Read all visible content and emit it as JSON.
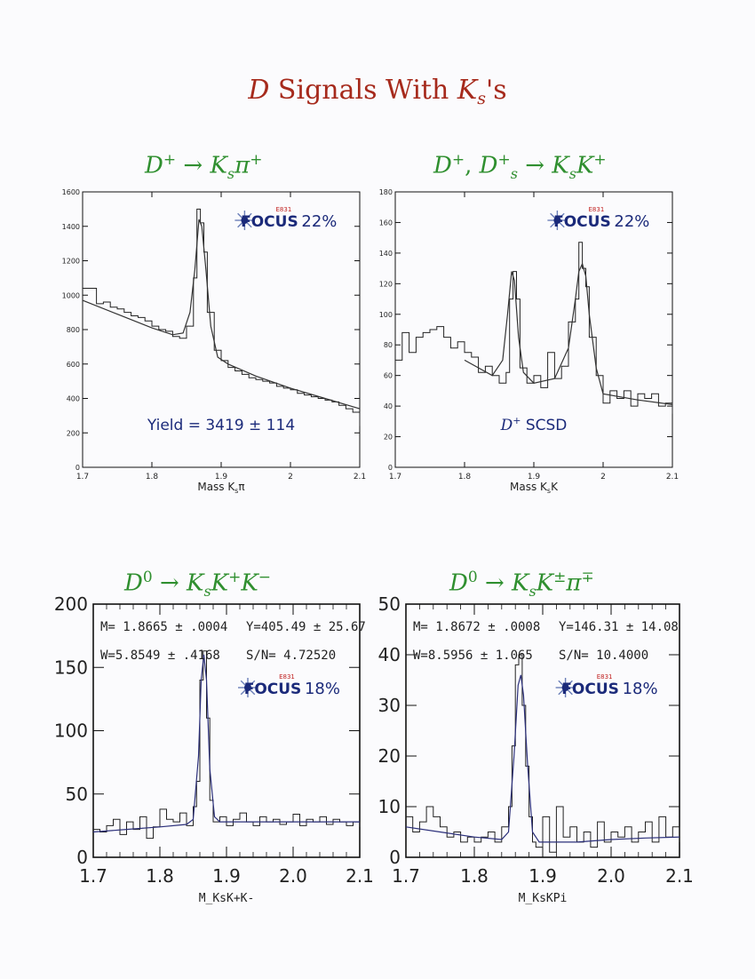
{
  "page": {
    "title_d": "D",
    "title_middle": " Signals With ",
    "title_k": "K",
    "title_sub": "s",
    "title_end": "'s"
  },
  "panels": [
    {
      "title": {
        "a": "D",
        "a_sup": "+",
        "arrow": " → ",
        "b": "K",
        "b_sub": "s",
        "c": "π",
        "c_sup": "+"
      },
      "xlabel": "Mass K",
      "xlabel_sub": "s",
      "xlabel_tail": "π",
      "xticks": [
        "1.7",
        "1.8",
        "1.9",
        "2",
        "2.1"
      ],
      "yticks": [
        "0",
        "200",
        "400",
        "600",
        "800",
        "1000",
        "1200",
        "1400",
        "1600"
      ],
      "logo_text": "FOCUS",
      "logo_badge": "E831",
      "percent": "22%",
      "annotation": "Yield = 3419 ± 114"
    },
    {
      "title": {
        "a": "D",
        "a_sup": "+",
        "mid": ", ",
        "d": "D",
        "d_sup": "+",
        "d_sub": "s",
        "arrow": " → ",
        "b": "K",
        "b_sub": "s",
        "c": "K",
        "c_sup": "+"
      },
      "xlabel": "Mass K",
      "xlabel_sub": "s",
      "xlabel_tail": "K",
      "xticks": [
        "1.7",
        "1.8",
        "1.9",
        "2",
        "2.1"
      ],
      "yticks": [
        "0",
        "20",
        "40",
        "60",
        "80",
        "100",
        "120",
        "140",
        "160",
        "180"
      ],
      "logo_text": "FOCUS",
      "logo_badge": "E831",
      "percent": "22%",
      "annotation_a": "D",
      "annotation_sup": "+",
      "annotation_b": " SCSD"
    },
    {
      "title": {
        "a": "D",
        "a_sup": "0",
        "arrow": " → ",
        "b": "K",
        "b_sub": "s",
        "c": "K",
        "c_sup": "+",
        "d": "K",
        "d_sup": "−"
      },
      "xlabel": "M_KsK+K-",
      "xticks": [
        "1.7",
        "1.8",
        "1.9",
        "2.0",
        "2.1"
      ],
      "yticks": [
        "0",
        "50",
        "100",
        "150",
        "200"
      ],
      "logo_text": "FOCUS",
      "logo_badge": "E831",
      "percent": "18%",
      "fit_m": "M= 1.8665 ± .0004",
      "fit_y": "Y=405.49 ± 25.67",
      "fit_w": "W=5.8549 ± .4168",
      "fit_sn": "S/N= 4.72520"
    },
    {
      "title": {
        "a": "D",
        "a_sup": "0",
        "arrow": " → ",
        "b": "K",
        "b_sub": "s",
        "c": "K",
        "c_sup": "±",
        "d": "π",
        "d_sup": "∓"
      },
      "xlabel": "M_KsKPi",
      "xticks": [
        "1.7",
        "1.8",
        "1.9",
        "2.0",
        "2.1"
      ],
      "yticks": [
        "0",
        "10",
        "20",
        "30",
        "40",
        "50"
      ],
      "logo_text": "FOCUS",
      "logo_badge": "E831",
      "percent": "18%",
      "fit_m": "M= 1.8672 ± .0008",
      "fit_y": "Y=146.31 ± 14.08",
      "fit_w": "W=8.5956 ± 1.065",
      "fit_sn": "S/N= 10.4000"
    }
  ],
  "chart_data": [
    {
      "type": "line",
      "title": "D+ → Ksπ+",
      "xlabel": "Mass Ksπ",
      "xlim": [
        1.7,
        2.1
      ],
      "ylim": [
        0,
        1600
      ],
      "histogram": {
        "x": [
          1.7,
          1.71,
          1.72,
          1.73,
          1.74,
          1.75,
          1.76,
          1.77,
          1.78,
          1.79,
          1.8,
          1.81,
          1.82,
          1.83,
          1.84,
          1.85,
          1.86,
          1.865,
          1.87,
          1.875,
          1.88,
          1.89,
          1.9,
          1.91,
          1.92,
          1.93,
          1.94,
          1.95,
          1.96,
          1.97,
          1.98,
          1.99,
          2.0,
          2.01,
          2.02,
          2.03,
          2.04,
          2.05,
          2.06,
          2.07,
          2.08,
          2.09,
          2.1
        ],
        "y": [
          1040,
          1040,
          950,
          960,
          930,
          920,
          900,
          880,
          870,
          850,
          820,
          800,
          790,
          760,
          750,
          820,
          1100,
          1500,
          1420,
          1250,
          900,
          680,
          620,
          580,
          560,
          540,
          520,
          510,
          500,
          490,
          470,
          460,
          450,
          430,
          420,
          410,
          400,
          390,
          380,
          360,
          340,
          320,
          240
        ]
      },
      "fit": {
        "x": [
          1.7,
          1.75,
          1.8,
          1.83,
          1.845,
          1.855,
          1.862,
          1.868,
          1.872,
          1.878,
          1.885,
          1.895,
          1.91,
          1.95,
          2.0,
          2.05,
          2.1
        ],
        "y": [
          970,
          890,
          810,
          770,
          780,
          900,
          1150,
          1440,
          1400,
          1150,
          820,
          640,
          600,
          530,
          460,
          400,
          340
        ]
      },
      "annotation": "Yield = 3419 ± 114",
      "legend": "22%"
    },
    {
      "type": "line",
      "title": "D+, Ds+ → KsK+",
      "xlabel": "Mass KsK",
      "xlim": [
        1.7,
        2.1
      ],
      "ylim": [
        0,
        180
      ],
      "histogram": {
        "x": [
          1.7,
          1.71,
          1.72,
          1.73,
          1.74,
          1.75,
          1.76,
          1.77,
          1.78,
          1.79,
          1.8,
          1.81,
          1.82,
          1.83,
          1.84,
          1.85,
          1.86,
          1.865,
          1.87,
          1.875,
          1.88,
          1.89,
          1.9,
          1.91,
          1.92,
          1.93,
          1.94,
          1.95,
          1.96,
          1.965,
          1.97,
          1.975,
          1.98,
          1.99,
          2.0,
          2.01,
          2.02,
          2.03,
          2.04,
          2.05,
          2.06,
          2.07,
          2.08,
          2.09,
          2.1
        ],
        "y": [
          70,
          88,
          75,
          85,
          88,
          90,
          92,
          85,
          78,
          82,
          75,
          72,
          62,
          66,
          60,
          55,
          62,
          110,
          128,
          110,
          65,
          55,
          60,
          52,
          75,
          58,
          66,
          95,
          110,
          147,
          130,
          118,
          85,
          60,
          42,
          50,
          45,
          50,
          40,
          48,
          45,
          48,
          40,
          42,
          35
        ]
      },
      "fit": {
        "x": [
          1.8,
          1.84,
          1.855,
          1.862,
          1.868,
          1.872,
          1.878,
          1.885,
          1.9,
          1.93,
          1.95,
          1.96,
          1.965,
          1.97,
          1.975,
          1.98,
          1.99,
          2.0,
          2.05,
          2.1
        ],
        "y": [
          70,
          60,
          70,
          100,
          128,
          122,
          85,
          62,
          55,
          58,
          78,
          110,
          128,
          133,
          125,
          100,
          65,
          48,
          44,
          41
        ]
      },
      "annotation": "D+ SCSD",
      "legend": "22%"
    },
    {
      "type": "line",
      "title": "D0 → KsK+K−",
      "xlabel": "M_KsK+K-",
      "xlim": [
        1.7,
        2.1
      ],
      "ylim": [
        0,
        200
      ],
      "histogram": {
        "x": [
          1.7,
          1.71,
          1.72,
          1.73,
          1.74,
          1.75,
          1.76,
          1.77,
          1.78,
          1.79,
          1.8,
          1.81,
          1.82,
          1.83,
          1.84,
          1.85,
          1.855,
          1.86,
          1.865,
          1.87,
          1.875,
          1.88,
          1.89,
          1.9,
          1.91,
          1.92,
          1.93,
          1.94,
          1.95,
          1.96,
          1.97,
          1.98,
          1.99,
          2.0,
          2.01,
          2.02,
          2.03,
          2.04,
          2.05,
          2.06,
          2.07,
          2.08,
          2.09,
          2.1
        ],
        "y": [
          22,
          20,
          25,
          30,
          18,
          28,
          22,
          32,
          15,
          24,
          38,
          30,
          28,
          35,
          25,
          40,
          60,
          140,
          163,
          110,
          45,
          28,
          32,
          25,
          30,
          35,
          28,
          25,
          32,
          28,
          30,
          26,
          28,
          34,
          25,
          30,
          28,
          32,
          26,
          30,
          28,
          25,
          28,
          24
        ]
      },
      "fit": {
        "x": [
          1.7,
          1.75,
          1.8,
          1.84,
          1.85,
          1.858,
          1.862,
          1.866,
          1.87,
          1.875,
          1.882,
          1.89,
          1.95,
          2.0,
          2.05,
          2.1
        ],
        "y": [
          20,
          22,
          24,
          26,
          30,
          80,
          140,
          160,
          140,
          70,
          32,
          28,
          28,
          28,
          28,
          28
        ]
      },
      "fit_results": [
        "M= 1.8665 ± .0004",
        "Y=405.49 ± 25.67",
        "W=5.8549 ± .4168",
        "S/N= 4.72520"
      ],
      "legend": "18%"
    },
    {
      "type": "line",
      "title": "D0 → KsK±π∓",
      "xlabel": "M_KsKPi",
      "xlim": [
        1.7,
        2.1
      ],
      "ylim": [
        0,
        50
      ],
      "histogram": {
        "x": [
          1.7,
          1.71,
          1.72,
          1.73,
          1.74,
          1.75,
          1.76,
          1.77,
          1.78,
          1.79,
          1.8,
          1.81,
          1.82,
          1.83,
          1.84,
          1.85,
          1.855,
          1.86,
          1.865,
          1.87,
          1.875,
          1.88,
          1.885,
          1.89,
          1.9,
          1.91,
          1.92,
          1.93,
          1.94,
          1.95,
          1.96,
          1.97,
          1.98,
          1.99,
          2.0,
          2.01,
          2.02,
          2.03,
          2.04,
          2.05,
          2.06,
          2.07,
          2.08,
          2.09,
          2.1
        ],
        "y": [
          8,
          5,
          7,
          10,
          8,
          6,
          4,
          5,
          3,
          4,
          3,
          4,
          5,
          3,
          6,
          10,
          22,
          38,
          40,
          30,
          18,
          8,
          3,
          2,
          8,
          1,
          10,
          4,
          6,
          3,
          5,
          2,
          7,
          3,
          5,
          4,
          6,
          3,
          5,
          7,
          3,
          8,
          4,
          6,
          3
        ]
      },
      "fit": {
        "x": [
          1.7,
          1.75,
          1.8,
          1.84,
          1.85,
          1.858,
          1.864,
          1.868,
          1.872,
          1.878,
          1.885,
          1.895,
          1.95,
          2.0,
          2.05,
          2.1
        ],
        "y": [
          6,
          5,
          4,
          3.5,
          5,
          20,
          34,
          36,
          32,
          18,
          5,
          3,
          3,
          3.5,
          3.8,
          4
        ]
      },
      "fit_results": [
        "M= 1.8672 ± .0008",
        "Y=146.31 ± 14.08",
        "W=8.5956 ± 1.065",
        "S/N= 10.4000"
      ],
      "legend": "18%"
    }
  ]
}
